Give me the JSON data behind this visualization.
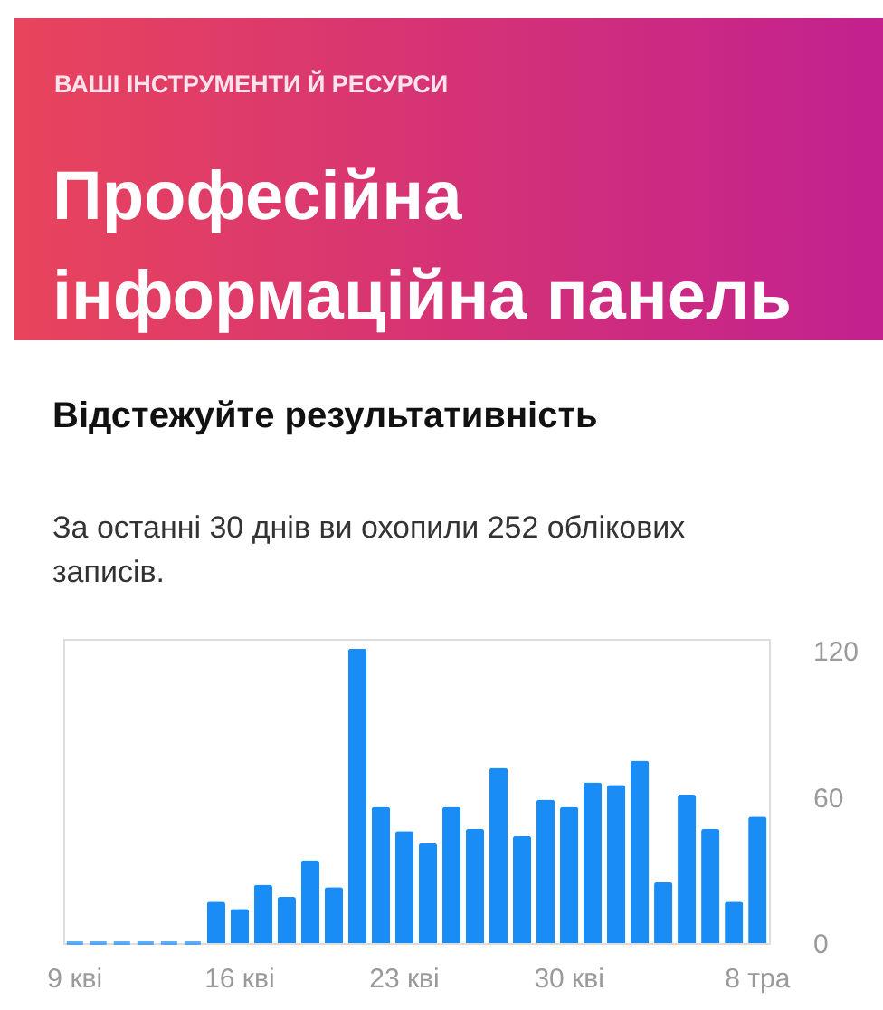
{
  "chart_data": {
    "type": "bar",
    "subtitle": "ВАШІ ІНСТРУМЕНТИ Й РЕСУРСИ",
    "title": "Професійна інформаційна панель",
    "annotations": [
      "Відстежуйте результативність",
      "За останні 30 днів ви охопили 252 облікових записів."
    ],
    "categories": [
      "9 кві",
      null,
      null,
      null,
      null,
      null,
      null,
      "16 кві",
      null,
      null,
      null,
      null,
      null,
      null,
      "23 кві",
      null,
      null,
      null,
      null,
      null,
      null,
      "30 кві",
      null,
      null,
      null,
      null,
      null,
      null,
      null,
      "8 тра"
    ],
    "values": [
      0,
      0,
      0,
      0,
      0,
      0,
      17,
      14,
      24,
      19,
      34,
      23,
      121,
      56,
      46,
      41,
      56,
      47,
      72,
      44,
      59,
      56,
      66,
      65,
      75,
      25,
      61,
      47,
      17,
      52
    ],
    "color": "#1a8cf5",
    "ylim": [
      0,
      125
    ],
    "yticks": [
      0,
      60,
      120
    ],
    "grid": false
  }
}
